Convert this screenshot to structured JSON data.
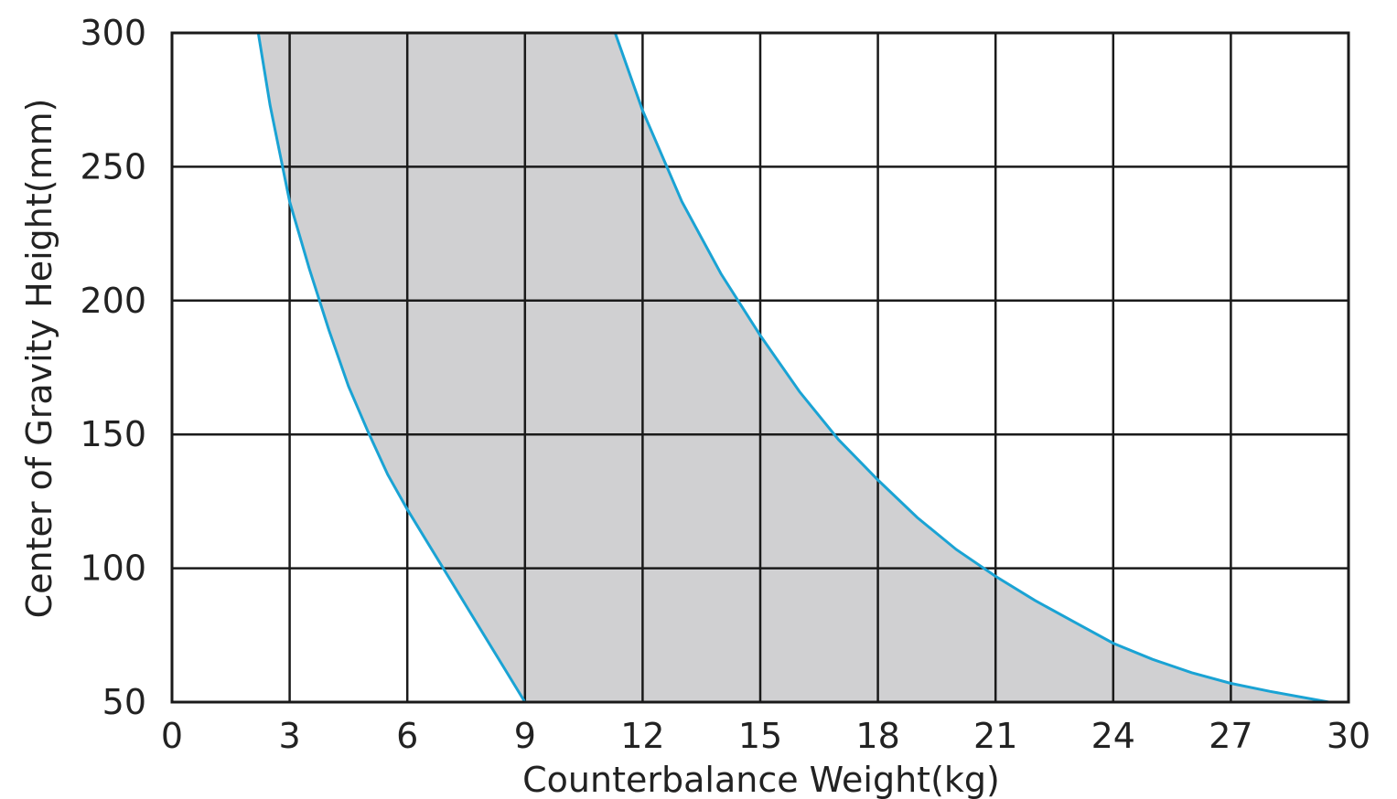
{
  "chart_data": {
    "type": "area",
    "title": "",
    "xlabel": "Counterbalance Weight(kg)",
    "ylabel": "Center of Gravity Height(mm)",
    "xlim": [
      0,
      30
    ],
    "ylim": [
      50,
      300
    ],
    "x_ticks": [
      "0",
      "3",
      "6",
      "9",
      "12",
      "15",
      "18",
      "21",
      "24",
      "27",
      "30"
    ],
    "y_ticks": [
      "300",
      "250",
      "200",
      "150",
      "100",
      "50"
    ],
    "grid": true,
    "colors": {
      "curve": "#1aa3d4",
      "fill": "#d0d0d2",
      "grid": "#1a1a1a"
    },
    "series": [
      {
        "x": [
          2.2,
          2.5,
          3.0,
          3.5,
          4.0,
          4.5,
          5.0,
          5.5,
          6.0,
          6.5,
          7.0,
          7.5,
          8.0,
          8.5,
          9.0
        ],
        "y": [
          300,
          273,
          237,
          212,
          189,
          168,
          151,
          135,
          122,
          110,
          98,
          86,
          74,
          62,
          50
        ]
      },
      {
        "x": [
          11.3,
          12.0,
          13.0,
          14.0,
          15.0,
          16.0,
          17.0,
          18.0,
          19.0,
          20.0,
          21.0,
          22.0,
          23.0,
          24.0,
          25.0,
          26.0,
          27.0,
          28.0,
          29.5
        ],
        "y": [
          300,
          271,
          237,
          210,
          187,
          166,
          148,
          133,
          119,
          107,
          97,
          88,
          80,
          72,
          66,
          61,
          57,
          54,
          50
        ]
      }
    ]
  }
}
